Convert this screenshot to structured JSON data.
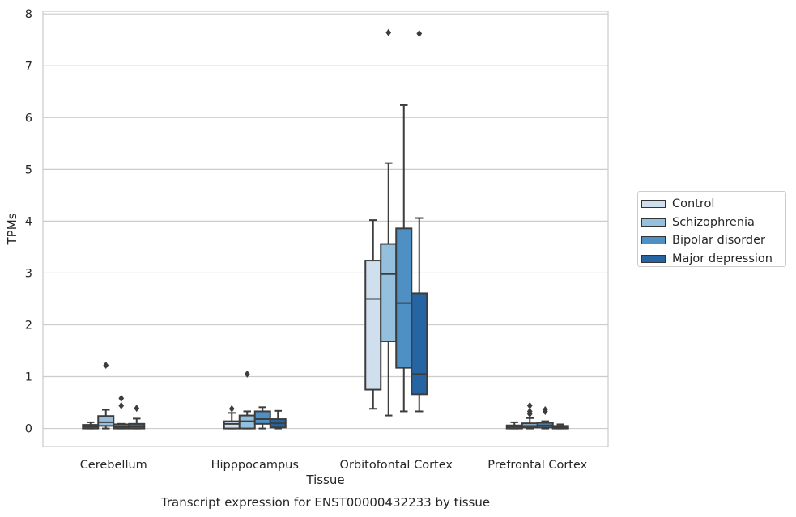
{
  "chart_data": {
    "type": "box",
    "title": "Transcript expression for ENST00000432233 by tissue",
    "xlabel": "Tissue",
    "ylabel": "TPMs",
    "ylim": [
      -0.35,
      8.05
    ],
    "yticks": [
      0,
      1,
      2,
      3,
      4,
      5,
      6,
      7,
      8
    ],
    "grid": true,
    "legend_position": "right",
    "categories": [
      "Cerebellum",
      "Hipppocampus",
      "Orbitofontal Cortex",
      "Prefrontal Cortex"
    ],
    "series": [
      {
        "name": "Control",
        "color": "#d0dfee",
        "boxes": [
          {
            "whislo": 0.0,
            "q1": 0.0,
            "med": 0.03,
            "q3": 0.07,
            "whishi": 0.12,
            "fliers": []
          },
          {
            "whislo": 0.0,
            "q1": 0.0,
            "med": 0.09,
            "q3": 0.14,
            "whishi": 0.3,
            "fliers": [
              0.38
            ]
          },
          {
            "whislo": 0.38,
            "q1": 0.75,
            "med": 2.5,
            "q3": 3.24,
            "whishi": 4.02,
            "fliers": []
          },
          {
            "whislo": 0.0,
            "q1": 0.0,
            "med": 0.03,
            "q3": 0.06,
            "whishi": 0.12,
            "fliers": []
          }
        ]
      },
      {
        "name": "Schizophrenia",
        "color": "#95c0dd",
        "boxes": [
          {
            "whislo": 0.0,
            "q1": 0.05,
            "med": 0.12,
            "q3": 0.24,
            "whishi": 0.36,
            "fliers": [
              1.22
            ]
          },
          {
            "whislo": 0.0,
            "q1": 0.0,
            "med": 0.14,
            "q3": 0.25,
            "whishi": 0.33,
            "fliers": [
              1.05
            ]
          },
          {
            "whislo": 0.25,
            "q1": 1.68,
            "med": 2.98,
            "q3": 3.56,
            "whishi": 5.12,
            "fliers": [
              7.64
            ]
          },
          {
            "whislo": 0.0,
            "q1": 0.02,
            "med": 0.05,
            "q3": 0.1,
            "whishi": 0.2,
            "fliers": [
              0.28,
              0.33,
              0.44
            ]
          }
        ]
      },
      {
        "name": "Bipolar disorder",
        "color": "#4f90c4",
        "boxes": [
          {
            "whislo": 0.0,
            "q1": 0.0,
            "med": 0.03,
            "q3": 0.08,
            "whishi": 0.09,
            "fliers": [
              0.44,
              0.58
            ]
          },
          {
            "whislo": 0.0,
            "q1": 0.09,
            "med": 0.18,
            "q3": 0.33,
            "whishi": 0.41,
            "fliers": []
          },
          {
            "whislo": 0.33,
            "q1": 1.17,
            "med": 2.42,
            "q3": 3.86,
            "whishi": 6.24,
            "fliers": []
          },
          {
            "whislo": 0.0,
            "q1": 0.02,
            "med": 0.06,
            "q3": 0.11,
            "whishi": 0.14,
            "fliers": [
              0.33,
              0.36
            ]
          }
        ]
      },
      {
        "name": "Major depression",
        "color": "#2565a3",
        "boxes": [
          {
            "whislo": 0.0,
            "q1": 0.0,
            "med": 0.04,
            "q3": 0.09,
            "whishi": 0.19,
            "fliers": [
              0.39
            ]
          },
          {
            "whislo": 0.0,
            "q1": 0.02,
            "med": 0.1,
            "q3": 0.18,
            "whishi": 0.34,
            "fliers": []
          },
          {
            "whislo": 0.33,
            "q1": 0.66,
            "med": 1.05,
            "q3": 2.61,
            "whishi": 4.06,
            "fliers": [
              7.62
            ]
          },
          {
            "whislo": 0.0,
            "q1": 0.0,
            "med": 0.02,
            "q3": 0.05,
            "whishi": 0.08,
            "fliers": []
          }
        ]
      }
    ]
  }
}
